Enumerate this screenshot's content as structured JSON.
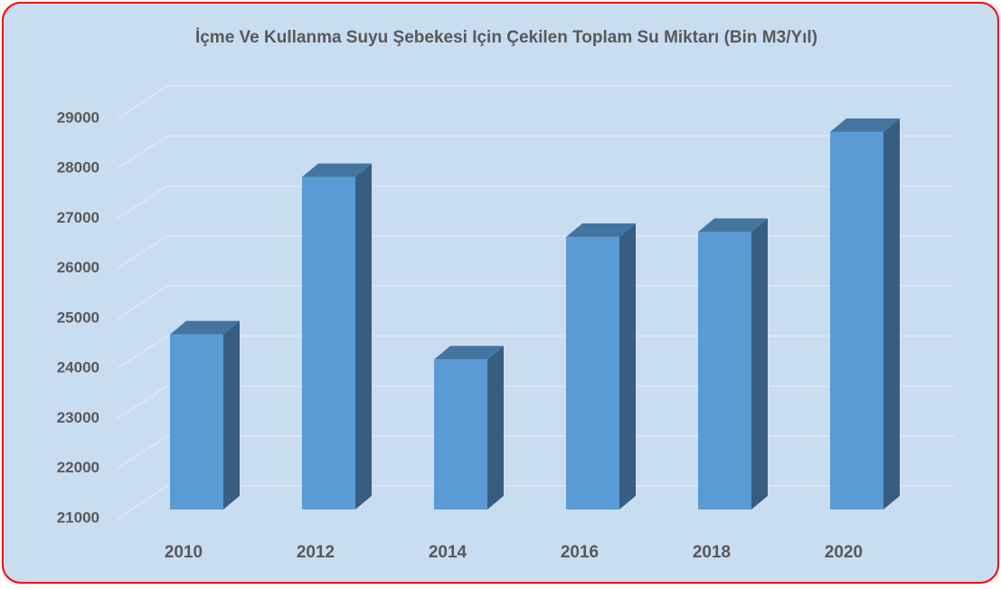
{
  "chart_data": {
    "type": "bar3d",
    "title": "İçme Ve Kullanma Suyu Şebekesi Için Çekilen Toplam Su Miktarı (Bin M3/Yıl)",
    "categories": [
      "2010",
      "2012",
      "2014",
      "2016",
      "2018",
      "2020"
    ],
    "values": [
      24500,
      27650,
      24000,
      26450,
      26550,
      28550
    ],
    "color": "#5b9bd5",
    "ylim": [
      21000,
      29000
    ],
    "yticks": [
      21000,
      22000,
      23000,
      24000,
      25000,
      26000,
      27000,
      28000,
      29000
    ],
    "grid": true
  }
}
